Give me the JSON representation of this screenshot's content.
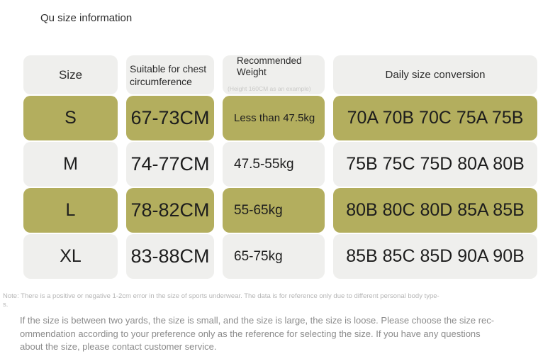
{
  "page": {
    "title": "Qu size information"
  },
  "table": {
    "headers": {
      "size": "Size",
      "chest": "Suitable for chest circumference",
      "weight_label": "Recommended Weight",
      "weight_note": "(Height 160CM as an example)",
      "daily": "Daily size conversion"
    },
    "rows": [
      {
        "size": "S",
        "chest": "67-73CM",
        "weight": "Less than 47.5kg",
        "daily": "70A 70B 70C 75A 75B"
      },
      {
        "size": "M",
        "chest": "74-77CM",
        "weight": "47.5-55kg",
        "daily": "75B 75C 75D 80A 80B"
      },
      {
        "size": "L",
        "chest": "78-82CM",
        "weight": "55-65kg",
        "daily": "80B 80C 80D 85A 85B"
      },
      {
        "size": "XL",
        "chest": "83-88CM",
        "weight": "65-75kg",
        "daily": "85B 85C 85D 90A 90B"
      }
    ],
    "highlight_color": "#b3ae5e",
    "neutral_color": "#efefed"
  },
  "footnotes": {
    "note_lines": [
      "Note: There is a positive or negative 1-2cm error in the size of sports underwear. The data is for reference only due to different personal body type-",
      "s."
    ],
    "paragraph_lines": [
      "If the size is between two yards, the size is small, and the size is large, the size is loose. Please choose the size rec-",
      "ommendation according to your preference only as the reference for selecting the size. If you have any questions",
      "about the size, please contact customer service."
    ]
  }
}
